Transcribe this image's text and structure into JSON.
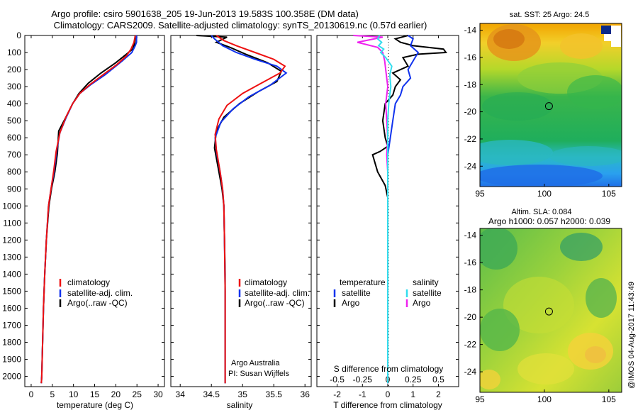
{
  "title": {
    "line1": "Argo profile: csiro 5901638_205 19-Jun-2013 19.583S 100.358E (DM data)",
    "line2": "Climatology: CARS2009. Satellite-adjusted climatology: synTS_20130619.nc (0.57d earlier)"
  },
  "credit": "@IMOS 04-Aug-2017 11:43:49",
  "colors": {
    "climatology": "#ee1111",
    "satellite": "#1133ee",
    "argo": "#000000",
    "sal_satellite": "#33ddee",
    "sal_argo": "#ee22ee"
  },
  "chart_data": [
    {
      "type": "line",
      "name": "temperature-profile",
      "xlabel": "temperature (deg C)",
      "xticks": [
        0,
        5,
        10,
        15,
        20,
        25,
        30
      ],
      "xlim": [
        -1.5,
        31.5
      ],
      "ylim": [
        2060,
        0
      ],
      "yticks": [
        0,
        100,
        200,
        300,
        400,
        500,
        600,
        700,
        800,
        900,
        1000,
        1100,
        1200,
        1300,
        1400,
        1500,
        1600,
        1700,
        1800,
        1900,
        2000
      ],
      "legend": [
        "climatology",
        "satellite-adj. clim.",
        "Argo(..raw -QC)"
      ],
      "series": [
        {
          "name": "Argo",
          "color_key": "argo",
          "x": [
            24.6,
            24.5,
            24.3,
            24.0,
            22.5,
            20.0,
            16.5,
            13.5,
            11.3,
            9.8,
            8.2,
            6.5,
            6.2,
            5.6,
            4.8,
            4.2,
            3.6,
            3.2,
            2.9,
            2.7,
            2.5,
            2.4
          ],
          "y": [
            0,
            40,
            60,
            80,
            110,
            160,
            220,
            280,
            340,
            400,
            480,
            560,
            690,
            800,
            900,
            1000,
            1200,
            1400,
            1600,
            1800,
            2000,
            2040
          ]
        },
        {
          "name": "satellite-adj. clim.",
          "color_key": "satellite",
          "x": [
            24.9,
            24.9,
            24.6,
            23.8,
            21.5,
            17.5,
            14.0,
            11.5,
            9.8,
            8.3,
            6.8,
            6.0,
            5.4,
            4.7,
            4.1,
            3.6,
            3.2,
            2.9,
            2.7,
            2.5,
            2.4
          ],
          "y": [
            0,
            40,
            60,
            100,
            150,
            230,
            290,
            340,
            400,
            480,
            570,
            680,
            800,
            900,
            1000,
            1200,
            1400,
            1600,
            1800,
            2000,
            2040
          ]
        },
        {
          "name": "climatology",
          "color_key": "climatology",
          "x": [
            24.6,
            24.3,
            23.6,
            22.5,
            20.3,
            17.0,
            13.8,
            11.5,
            9.8,
            8.2,
            6.8,
            5.9,
            5.3,
            4.7,
            4.1,
            3.6,
            3.2,
            2.9,
            2.7,
            2.5,
            2.4
          ],
          "y": [
            0,
            40,
            80,
            120,
            170,
            230,
            290,
            340,
            400,
            480,
            570,
            680,
            800,
            900,
            1000,
            1200,
            1400,
            1600,
            1800,
            2000,
            2040
          ]
        }
      ]
    },
    {
      "type": "line",
      "name": "salinity-profile",
      "xlabel": "salinity",
      "xticks": [
        34,
        34.5,
        35,
        35.5,
        36
      ],
      "xlim": [
        33.85,
        36.1
      ],
      "ylim": [
        2060,
        0
      ],
      "legend": [
        "climatology",
        "satellite-adj. clim.",
        "Argo(..raw -QC)"
      ],
      "annotations": [
        "Argo Australia",
        "PI: Susan Wijffels"
      ],
      "series": [
        {
          "name": "Argo",
          "color_key": "argo",
          "x": [
            34.26,
            34.75,
            34.58,
            34.8,
            35.05,
            35.4,
            35.62,
            35.55,
            35.25,
            34.95,
            34.7,
            34.58,
            34.55,
            34.62,
            34.67,
            34.7,
            34.71,
            34.72,
            34.72,
            34.72,
            34.72
          ],
          "y": [
            0,
            10,
            40,
            70,
            110,
            160,
            210,
            270,
            330,
            400,
            480,
            560,
            660,
            800,
            900,
            1000,
            1200,
            1400,
            1600,
            1800,
            2040
          ]
        },
        {
          "name": "satellite-adj. clim.",
          "color_key": "satellite",
          "x": [
            34.5,
            34.55,
            34.68,
            34.9,
            35.2,
            35.55,
            35.7,
            35.45,
            35.1,
            34.85,
            34.65,
            34.56,
            34.58,
            34.64,
            34.68,
            34.7,
            34.71,
            34.72,
            34.72,
            34.72
          ],
          "y": [
            0,
            20,
            60,
            100,
            140,
            180,
            220,
            290,
            360,
            430,
            510,
            600,
            680,
            800,
            900,
            1000,
            1200,
            1500,
            1800,
            2040
          ]
        },
        {
          "name": "climatology",
          "color_key": "climatology",
          "x": [
            34.58,
            34.7,
            34.9,
            35.2,
            35.5,
            35.68,
            35.6,
            35.3,
            35.0,
            34.75,
            34.62,
            34.56,
            34.58,
            34.64,
            34.68,
            34.7,
            34.71,
            34.72,
            34.72,
            34.72
          ],
          "y": [
            0,
            30,
            60,
            100,
            140,
            180,
            220,
            280,
            340,
            410,
            490,
            580,
            670,
            800,
            900,
            1000,
            1200,
            1500,
            1800,
            2040
          ]
        }
      ]
    },
    {
      "type": "line",
      "name": "difference-profile",
      "xlabel": "T difference from climatology",
      "top_xlabel": "S difference from climatology",
      "xticks": [
        -2,
        -1,
        0,
        1,
        2
      ],
      "xticks_top": [
        -0.5,
        -0.25,
        0,
        0.25,
        0.5
      ],
      "xlim": [
        -2.8,
        2.8
      ],
      "ylim": [
        2060,
        0
      ],
      "legend": {
        "temperature_title": "temperature",
        "salinity_title": "salinity",
        "t_satellite": "satellite",
        "t_argo": "Argo",
        "s_satellite": "satellite",
        "s_argo": "Argo"
      },
      "series": [
        {
          "name": "T Argo",
          "color_key": "argo",
          "x": [
            0.8,
            0.3,
            0.5,
            1.0,
            2.2,
            2.3,
            1.2,
            0.6,
            0.8,
            0.2,
            0.5,
            0.3,
            0.2,
            -0.1,
            -0.2,
            -0.1,
            0.0,
            -0.3,
            -0.6,
            -0.4,
            -0.1,
            0.0,
            0.0,
            0.0,
            0.0
          ],
          "y": [
            0,
            20,
            40,
            60,
            80,
            100,
            110,
            130,
            180,
            220,
            260,
            300,
            350,
            400,
            500,
            600,
            650,
            680,
            700,
            800,
            880,
            950,
            1200,
            1600,
            2040
          ]
        },
        {
          "name": "T satellite",
          "color_key": "satellite",
          "x": [
            0.8,
            1.0,
            0.9,
            1.2,
            1.0,
            0.8,
            0.9,
            0.6,
            0.5,
            0.3,
            0.2,
            0.1,
            0.0,
            0.0,
            0.0,
            0.0,
            0.0
          ],
          "y": [
            0,
            20,
            60,
            100,
            150,
            200,
            250,
            300,
            350,
            400,
            500,
            600,
            700,
            800,
            1000,
            1500,
            2040
          ]
        },
        {
          "name": "S Argo",
          "color_key": "sal_argo",
          "x": [
            -0.34,
            -0.05,
            -0.3,
            -0.1,
            -0.05,
            -0.03,
            -0.02,
            0.0,
            -0.02,
            -0.01,
            0.0,
            -0.01,
            0.0,
            0.0,
            0.0,
            0.0
          ],
          "y": [
            0,
            10,
            40,
            70,
            100,
            150,
            200,
            300,
            400,
            500,
            600,
            700,
            800,
            1000,
            1500,
            2040
          ]
        },
        {
          "name": "S satellite",
          "color_key": "sal_satellite",
          "x": [
            -0.08,
            -0.1,
            -0.06,
            -0.09,
            -0.04,
            -0.07,
            -0.02,
            0.04,
            0.02,
            0.03,
            0.01,
            0.0,
            0.0,
            0.0,
            0.0,
            0.0,
            0.0
          ],
          "y": [
            0,
            20,
            40,
            60,
            80,
            100,
            130,
            180,
            230,
            300,
            400,
            500,
            700,
            1000,
            1400,
            1800,
            2040
          ]
        }
      ]
    },
    {
      "type": "heatmap",
      "name": "sst-map",
      "title": "sat. SST: 25 Argo: 24.5",
      "xticks": [
        95,
        100,
        105
      ],
      "yticks": [
        -14,
        -16,
        -18,
        -20,
        -22,
        -24
      ],
      "xlim": [
        95,
        106
      ],
      "ylim": [
        -25.5,
        -13.5
      ],
      "marker": {
        "lon": 100.358,
        "lat": -19.583
      }
    },
    {
      "type": "heatmap",
      "name": "sla-map",
      "title": "Altim. SLA: 0.084",
      "subtitle": "Argo h1000: 0.057 h2000: 0.039",
      "xticks": [
        95,
        100,
        105
      ],
      "yticks": [
        -14,
        -16,
        -18,
        -20,
        -22,
        -24
      ],
      "xlim": [
        95,
        106
      ],
      "ylim": [
        -25.5,
        -13.5
      ],
      "marker": {
        "lon": 100.358,
        "lat": -19.583
      }
    }
  ]
}
